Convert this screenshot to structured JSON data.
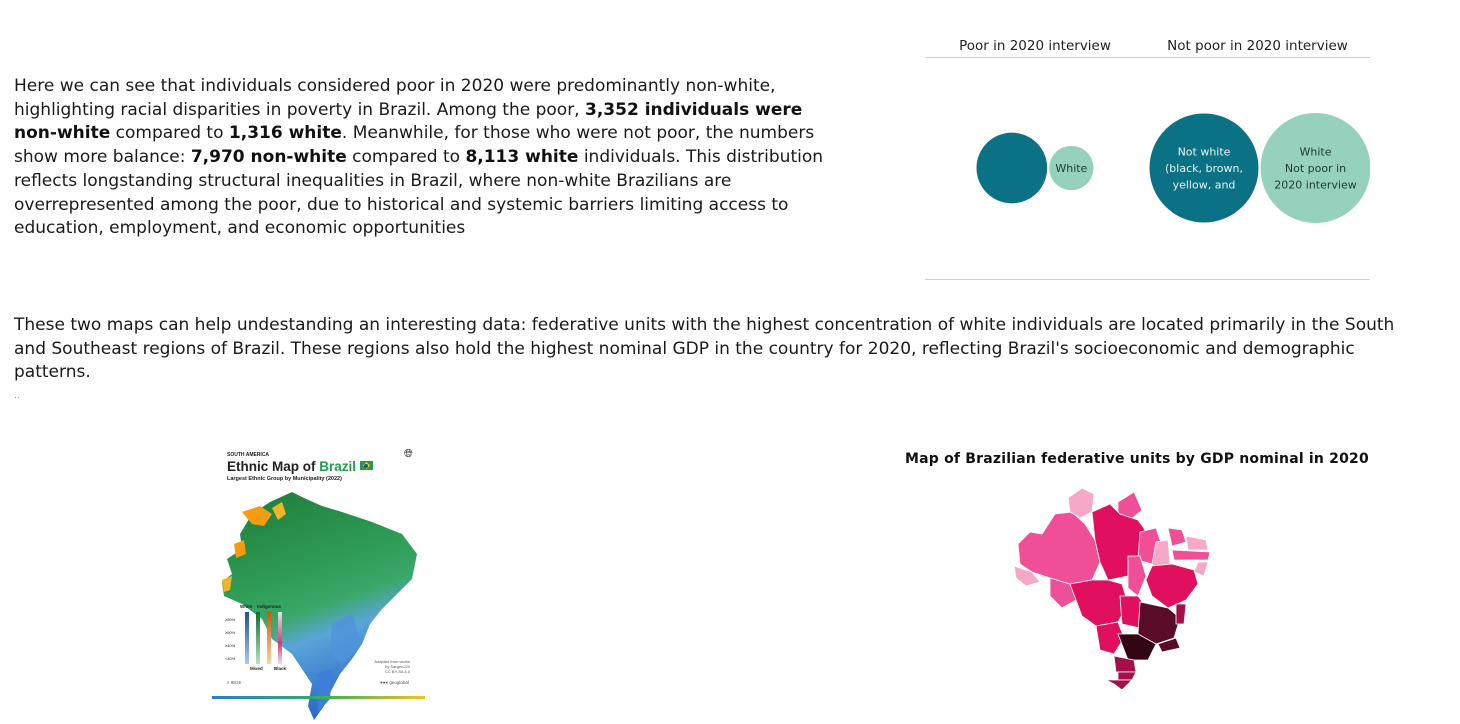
{
  "paragraph1": {
    "s1": "Here we can see that individuals considered poor in 2020 were predominantly non-white, highlighting racial disparities in poverty in Brazil. Among the poor, ",
    "b1": "3,352 individuals were non-white",
    "s2": " compared to ",
    "b2": "1,316 white",
    "s3": ". Meanwhile, for those who were not poor, the numbers show more balance: ",
    "b3": "7,970 non-white",
    "s4": " compared to ",
    "b4": "8,113 white",
    "s5": " individuals. This distribution reflects longstanding structural inequalities in Brazil, where non-white Brazilians are overrepresented among the poor, due to historical and systemic barriers limiting access to education, employment, and economic opportunities"
  },
  "paragraph2": "These two maps can help undestanding an interesting data: federative units with the highest concentration of white individuals are located primarily in the South and Southeast regions of Brazil. These regions also hold the highest nominal GDP in the country for 2020, reflecting Brazil's socioeconomic and demographic patterns.",
  "separator_dots": "..",
  "chart_data": {
    "type": "bubble",
    "columns": [
      "Poor in 2020 interview",
      "Not poor in 2020 interview"
    ],
    "series": [
      {
        "column": "Poor in 2020 interview",
        "group": "Not white",
        "value": 3352,
        "label": ""
      },
      {
        "column": "Poor in 2020 interview",
        "group": "White",
        "value": 1316,
        "label": "White"
      },
      {
        "column": "Not poor in 2020 interview",
        "group": "Not white",
        "value": 7970,
        "label_lines": [
          "Not white",
          "(black, brown,",
          "yellow, and"
        ]
      },
      {
        "column": "Not poor in 2020 interview",
        "group": "White",
        "value": 8113,
        "label_lines": [
          "White",
          "Not poor in",
          "2020 interview"
        ]
      }
    ],
    "colors": {
      "Not white": "#0b7285",
      "White": "#96d1be"
    }
  },
  "map1": {
    "kicker": "SOUTH AMERICA",
    "title_prefix": "Ethnic Map of ",
    "title_highlight": "Brazil",
    "subtitle": "Largest Ethnic Group by Municipality (2022)",
    "legend_top": [
      "White",
      "Indigenous"
    ],
    "legend_bottom": [
      "Mixed",
      "Black"
    ],
    "legend_levels": [
      "≥80%",
      "≥60%",
      "≥40%",
      "<40%"
    ],
    "credit_lines": [
      "Adapted from works",
      "by Sargen220",
      "CC BY-SA 4.0"
    ],
    "source": "IBGE",
    "brand": "geoglobal",
    "colors": {
      "white": "#3b82d6",
      "indigenous": "#f39c12",
      "mixed": "#2e9e5b",
      "black": "#d63a6b"
    }
  },
  "map2": {
    "title": "Map of Brazilian federative units by GDP nominal in 2020",
    "colors": {
      "lightest": "#f7a8c9",
      "light": "#ee4f97",
      "mid": "#e0105f",
      "dark": "#a3104a",
      "darker": "#5a0b2a",
      "darkest": "#330615"
    }
  }
}
